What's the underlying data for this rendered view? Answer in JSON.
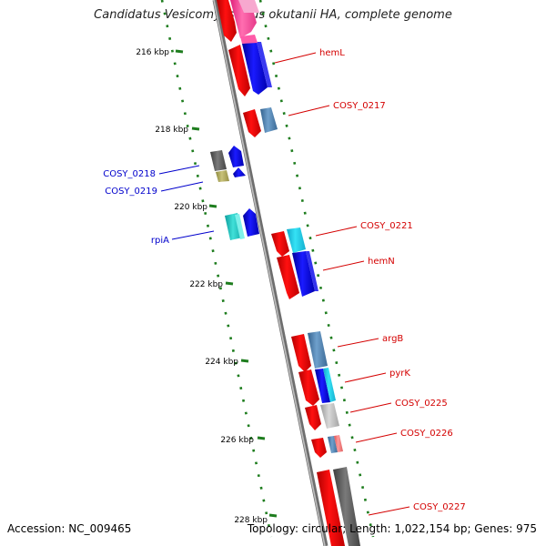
{
  "title": "Candidatus Vesicomyosocius okutanii HA, complete genome",
  "footer": {
    "accession": "Accession: NC_009465",
    "summary": "Topology: circular; Length: 1,022,154 bp; Genes: 975"
  },
  "colors": {
    "backbone": "#8a8a8a",
    "tick": "#1e7d1e",
    "forward_label": "#d40000",
    "reverse_label": "#0000cc"
  },
  "ticks": [
    {
      "label": "216 kbp"
    },
    {
      "label": "218 kbp"
    },
    {
      "label": "220 kbp"
    },
    {
      "label": "222 kbp"
    },
    {
      "label": "224 kbp"
    },
    {
      "label": "226 kbp"
    },
    {
      "label": "228 kbp"
    }
  ],
  "gene_labels": [
    {
      "text": "hemL",
      "strand": "forward"
    },
    {
      "text": "COSY_0217",
      "strand": "forward"
    },
    {
      "text": "COSY_0218",
      "strand": "reverse"
    },
    {
      "text": "COSY_0219",
      "strand": "reverse"
    },
    {
      "text": "COSY_0221",
      "strand": "forward"
    },
    {
      "text": "hemN",
      "strand": "forward"
    },
    {
      "text": "rpiA",
      "strand": "reverse"
    },
    {
      "text": "argB",
      "strand": "forward"
    },
    {
      "text": "pyrK",
      "strand": "forward"
    },
    {
      "text": "COSY_0225",
      "strand": "forward"
    },
    {
      "text": "COSY_0226",
      "strand": "forward"
    },
    {
      "text": "COSY_0227",
      "strand": "forward"
    }
  ]
}
